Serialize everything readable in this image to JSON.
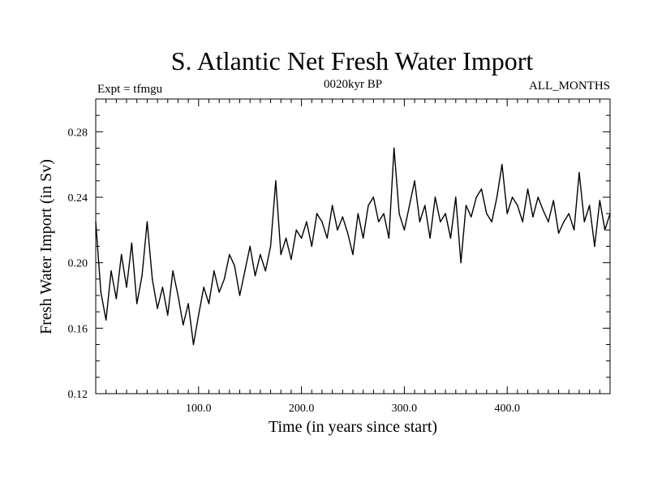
{
  "chart_data": {
    "type": "line",
    "title": "S. Atlantic Net Fresh Water Import",
    "subtitle_left": "Expt = tfmgu",
    "subtitle_center": "0020kyr BP",
    "subtitle_right": "ALL_MONTHS",
    "xlabel": "Time (in years since start)",
    "ylabel": "Fresh Water Import (in Sv)",
    "xlim": [
      0,
      500
    ],
    "ylim": [
      0.12,
      0.3
    ],
    "x_ticks": [
      100,
      200,
      300,
      400
    ],
    "x_tick_labels": [
      "100.0",
      "200.0",
      "300.0",
      "400.0"
    ],
    "y_ticks": [
      0.12,
      0.16,
      0.2,
      0.24,
      0.28
    ],
    "y_tick_labels": [
      "0.12",
      "0.16",
      "0.20",
      "0.24",
      "0.28"
    ],
    "grid": false,
    "series": [
      {
        "x": [
          0,
          5,
          10,
          15,
          20,
          25,
          30,
          35,
          40,
          45,
          50,
          55,
          60,
          65,
          70,
          75,
          80,
          85,
          90,
          95,
          100,
          105,
          110,
          115,
          120,
          125,
          130,
          135,
          140,
          145,
          150,
          155,
          160,
          165,
          170,
          175,
          180,
          185,
          190,
          195,
          200,
          205,
          210,
          215,
          220,
          225,
          230,
          235,
          240,
          245,
          250,
          255,
          260,
          265,
          270,
          275,
          280,
          285,
          290,
          295,
          300,
          305,
          310,
          315,
          320,
          325,
          330,
          335,
          340,
          345,
          350,
          355,
          360,
          365,
          370,
          375,
          380,
          385,
          390,
          395,
          400,
          405,
          410,
          415,
          420,
          425,
          430,
          435,
          440,
          445,
          450,
          455,
          460,
          465,
          470,
          475,
          480,
          485,
          490,
          495,
          500
        ],
        "y": [
          0.225,
          0.182,
          0.165,
          0.195,
          0.178,
          0.205,
          0.185,
          0.212,
          0.175,
          0.192,
          0.225,
          0.19,
          0.172,
          0.185,
          0.168,
          0.195,
          0.18,
          0.162,
          0.175,
          0.15,
          0.168,
          0.185,
          0.175,
          0.195,
          0.182,
          0.19,
          0.205,
          0.198,
          0.18,
          0.195,
          0.21,
          0.192,
          0.205,
          0.195,
          0.21,
          0.25,
          0.205,
          0.215,
          0.202,
          0.22,
          0.215,
          0.225,
          0.21,
          0.23,
          0.225,
          0.215,
          0.235,
          0.22,
          0.228,
          0.218,
          0.205,
          0.23,
          0.215,
          0.235,
          0.24,
          0.225,
          0.23,
          0.215,
          0.27,
          0.23,
          0.22,
          0.235,
          0.25,
          0.225,
          0.235,
          0.215,
          0.24,
          0.225,
          0.23,
          0.215,
          0.24,
          0.2,
          0.235,
          0.228,
          0.24,
          0.245,
          0.23,
          0.225,
          0.24,
          0.26,
          0.23,
          0.24,
          0.235,
          0.225,
          0.245,
          0.228,
          0.24,
          0.232,
          0.225,
          0.238,
          0.218,
          0.225,
          0.23,
          0.22,
          0.255,
          0.225,
          0.235,
          0.21,
          0.238,
          0.22,
          0.23
        ]
      }
    ]
  }
}
